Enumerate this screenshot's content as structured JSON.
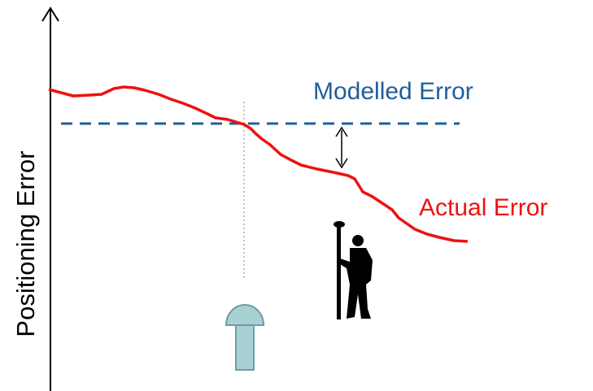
{
  "labels": {
    "y_axis": "Positioning Error",
    "modelled": "Modelled Error",
    "actual": "Actual Error"
  }
}
